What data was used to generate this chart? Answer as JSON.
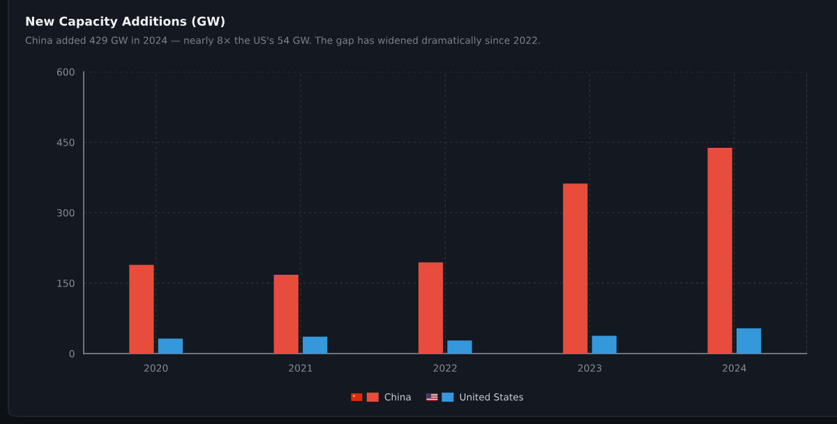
{
  "chart_data": {
    "type": "bar",
    "title": "New Capacity Additions (GW)",
    "subtitle": "China added 429 GW in 2024 — nearly 8× the US's 54 GW. The gap has widened dramatically since 2022.",
    "categories": [
      "2020",
      "2021",
      "2022",
      "2023",
      "2024"
    ],
    "series": [
      {
        "name": "China",
        "color": "#e74c3c",
        "values": [
          189,
          168,
          194,
          362,
          438
        ]
      },
      {
        "name": "United States",
        "color": "#3498db",
        "values": [
          32,
          36,
          28,
          38,
          54
        ]
      }
    ],
    "ylim": [
      0,
      600
    ],
    "yticks": [
      0,
      150,
      300,
      450,
      600
    ],
    "grid": true,
    "legend": "bottom"
  }
}
